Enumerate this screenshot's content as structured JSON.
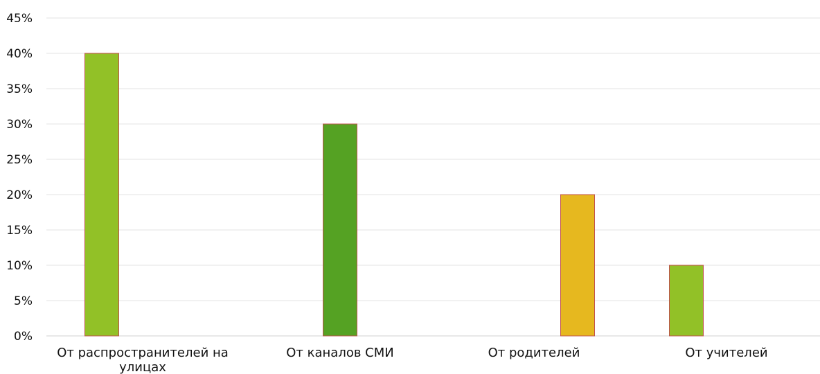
{
  "chart_data": {
    "type": "bar",
    "categories": [
      [
        "От распространителей на",
        "улицах"
      ],
      [
        "От каналов СМИ"
      ],
      [
        "От родителей"
      ],
      [
        "От учителей"
      ]
    ],
    "category_names": [
      "От распространителей на улицах",
      "От каналов СМИ",
      "От родителей",
      "От учителей"
    ],
    "values": [
      40,
      30,
      20,
      10
    ],
    "colors": [
      "#92c127",
      "#55a223",
      "#e6b81f",
      "#92c127"
    ],
    "edge_color": "#c0504d",
    "gridline_color": "#e3e3e3",
    "y_ticks": [
      "0%",
      "5%",
      "10%",
      "15%",
      "20%",
      "25%",
      "30%",
      "35%",
      "40%",
      "45%"
    ],
    "ylim": [
      0,
      45
    ],
    "y_unit": "%",
    "grid": true,
    "title": "",
    "xlabel": "",
    "ylabel": ""
  }
}
